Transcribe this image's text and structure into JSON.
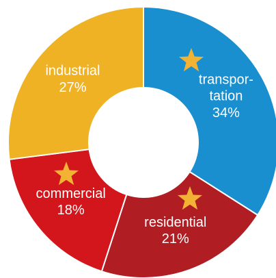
{
  "chart_data": {
    "type": "donut",
    "categories": [
      "transpor-\ntation",
      "residential",
      "commercial",
      "industrial"
    ],
    "values": [
      34,
      21,
      18,
      27
    ],
    "value_labels": [
      "34%",
      "21%",
      "18%",
      "27%"
    ],
    "colors": [
      "#1a8fd0",
      "#b01e24",
      "#d3161b",
      "#efb224"
    ]
  }
}
